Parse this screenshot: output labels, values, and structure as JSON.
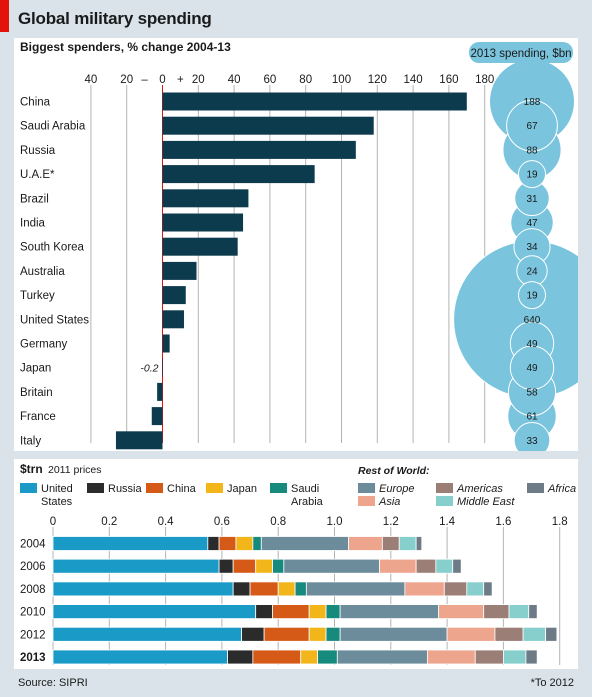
{
  "title": "Global military spending",
  "source": "Source: SIPRI",
  "footnote": "*To 2012",
  "chart_data": [
    {
      "type": "bar",
      "subtitle": "Biggest spenders, % change 2004-13",
      "x_tick_labels": [
        "40",
        "20",
        "–",
        "0",
        "+",
        "20",
        "40",
        "60",
        "80",
        "100",
        "120",
        "140",
        "160",
        "180"
      ],
      "xlim": [
        -40,
        180
      ],
      "categories": [
        "China",
        "Saudi Arabia",
        "Russia",
        "U.A.E*",
        "Brazil",
        "India",
        "South Korea",
        "Australia",
        "Turkey",
        "United States",
        "Germany",
        "Japan",
        "Britain",
        "France",
        "Italy"
      ],
      "values": [
        170,
        118,
        108,
        85,
        48,
        45,
        42,
        19,
        13,
        12,
        4,
        -0.2,
        -3,
        -6,
        -26
      ],
      "value_labels": {
        "Japan": "-0.2"
      },
      "bar_color": "#0d3b4e",
      "spending_header": "2013 spending, $bn",
      "spending": [
        188,
        67,
        88,
        19,
        31,
        47,
        34,
        24,
        19,
        640,
        49,
        49,
        58,
        61,
        33
      ],
      "bubble_color": "#7ac4dd"
    },
    {
      "type": "bar",
      "orientation": "horizontal-stacked",
      "subtitle": "$trn",
      "subtitle_note": "2011 prices",
      "x_ticks": [
        0,
        0.2,
        0.4,
        0.6,
        0.8,
        1.0,
        1.2,
        1.4,
        1.6,
        1.8
      ],
      "x_tick_labels": [
        "0",
        "0.2",
        "0.4",
        "0.6",
        "0.8",
        "1.0",
        "1.2",
        "1.4",
        "1.6",
        "1.8"
      ],
      "xlim": [
        0,
        1.8
      ],
      "rest_of_world_label": "Rest of World:",
      "categories": [
        "2004",
        "2006",
        "2008",
        "2010",
        "2012",
        "2013"
      ],
      "series": [
        {
          "name": "United States",
          "color": "#1a9bc7",
          "values": [
            0.55,
            0.59,
            0.64,
            0.72,
            0.67,
            0.62
          ]
        },
        {
          "name": "Russia",
          "color": "#2b2b2b",
          "values": [
            0.04,
            0.05,
            0.06,
            0.06,
            0.08,
            0.09
          ]
        },
        {
          "name": "China",
          "color": "#d65a17",
          "values": [
            0.06,
            0.08,
            0.1,
            0.13,
            0.16,
            0.17
          ]
        },
        {
          "name": "Japan",
          "color": "#f2b61b",
          "values": [
            0.06,
            0.06,
            0.06,
            0.06,
            0.06,
            0.06
          ]
        },
        {
          "name": "Saudi Arabia",
          "color": "#168a7c",
          "values": [
            0.03,
            0.04,
            0.04,
            0.05,
            0.05,
            0.07
          ]
        },
        {
          "name": "Europe",
          "color": "#6c8b9b",
          "values": [
            0.31,
            0.34,
            0.35,
            0.35,
            0.38,
            0.32
          ]
        },
        {
          "name": "Asia",
          "color": "#eea58e",
          "values": [
            0.12,
            0.13,
            0.14,
            0.16,
            0.17,
            0.17
          ]
        },
        {
          "name": "Americas",
          "color": "#9b7e76",
          "values": [
            0.06,
            0.07,
            0.08,
            0.09,
            0.1,
            0.1
          ]
        },
        {
          "name": "Middle East",
          "color": "#86cfcd",
          "values": [
            0.06,
            0.06,
            0.06,
            0.07,
            0.08,
            0.08
          ]
        },
        {
          "name": "Africa",
          "color": "#6d7b86",
          "values": [
            0.02,
            0.03,
            0.03,
            0.03,
            0.04,
            0.04
          ]
        }
      ]
    }
  ]
}
